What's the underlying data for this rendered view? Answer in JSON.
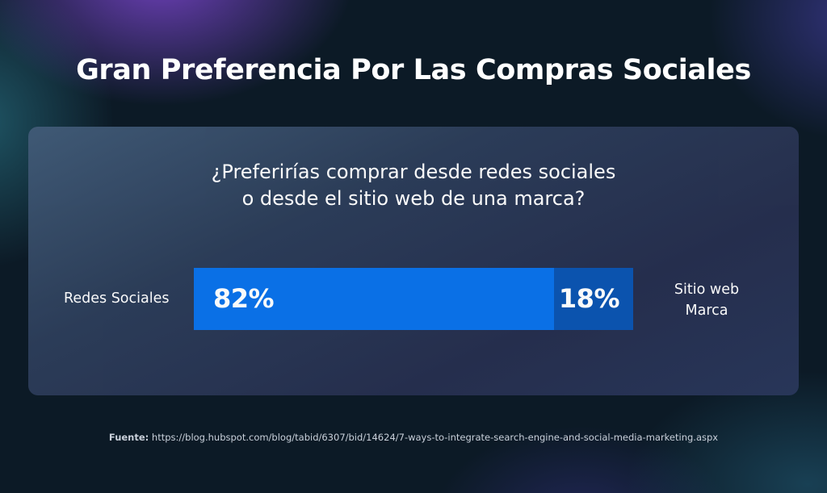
{
  "title": "Gran Preferencia Por Las Compras Sociales",
  "question": {
    "line1": "¿Preferirías comprar desde redes sociales",
    "line2": "o desde el sitio web de una marca?"
  },
  "labels": {
    "left": "Redes Sociales",
    "right_line1": "Sitio web",
    "right_line2": "Marca"
  },
  "source": {
    "label": "Fuente:",
    "url": "https://blog.hubspot.com/blog/tabid/6307/bid/14624/7-ways-to-integrate-search-engine-and-social-media-marketing.aspx"
  },
  "colors": {
    "background": "#0c1a26",
    "bar_primary": "#0a72ea",
    "bar_secondary": "#0b55b1",
    "text": "#ffffff"
  },
  "chart_data": {
    "type": "bar",
    "orientation": "horizontal-stacked",
    "title": "¿Preferirías comprar desde redes sociales o desde el sitio web de una marca?",
    "series": [
      {
        "name": "Redes Sociales",
        "value": 82,
        "label": "82%",
        "color": "#0a72ea"
      },
      {
        "name": "Sitio web Marca",
        "value": 18,
        "label": "18%",
        "color": "#0b55b1"
      }
    ],
    "total": 100,
    "unit": "%"
  }
}
